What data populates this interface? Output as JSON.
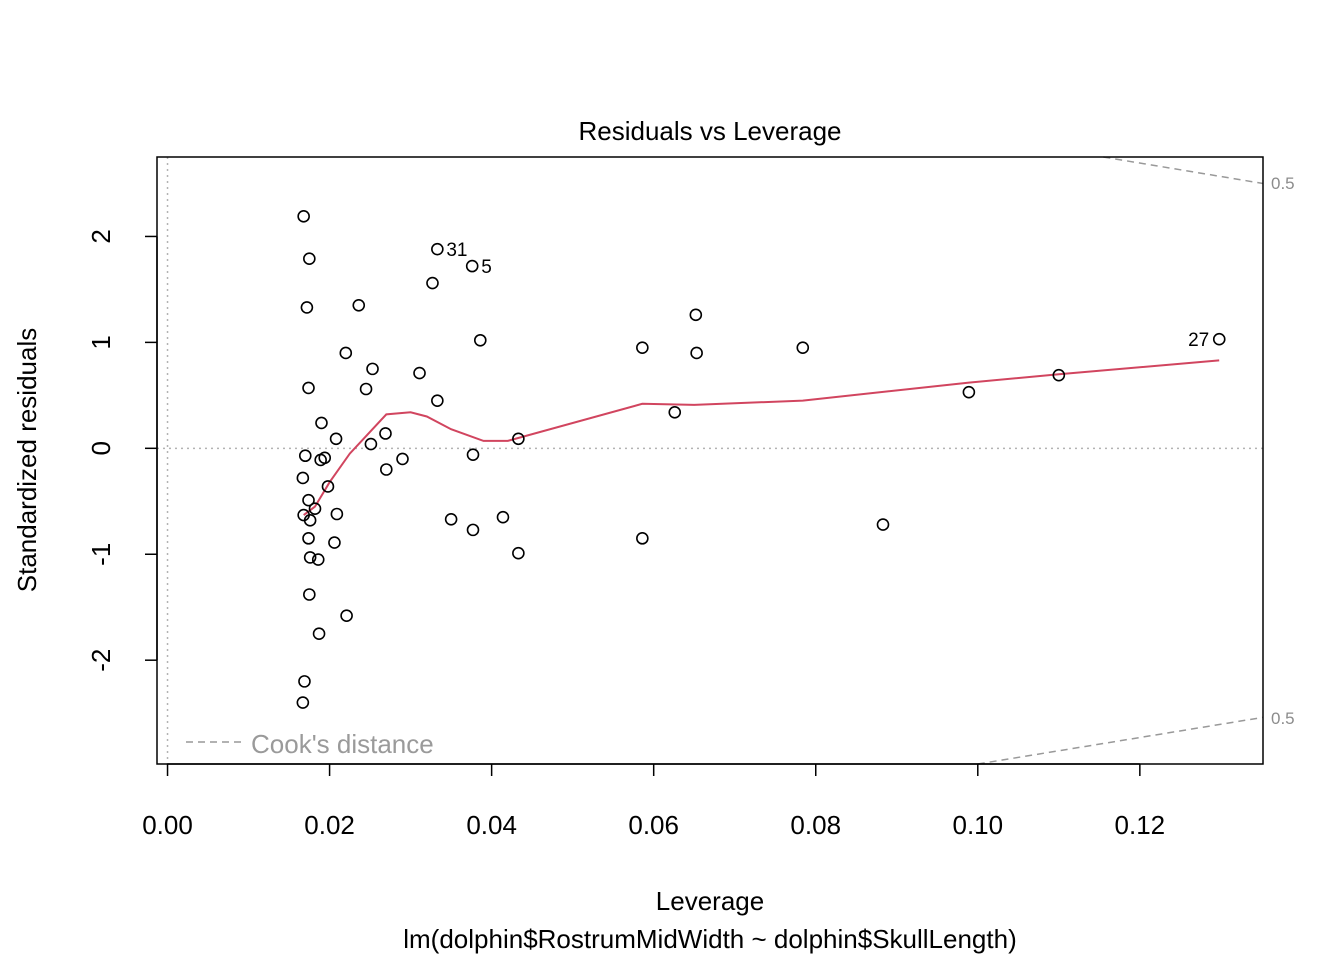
{
  "chart_data": {
    "type": "scatter",
    "title": "Residuals vs Leverage",
    "xlabel": "Leverage",
    "subtitle": "lm(dolphin$RostrumMidWidth ~ dolphin$SkullLength)",
    "ylabel": "Standardized residuals",
    "xlim": [
      -0.0013,
      0.1352
    ],
    "ylim": [
      -2.98,
      2.75
    ],
    "xticks": [
      0.0,
      0.02,
      0.04,
      0.06,
      0.08,
      0.1,
      0.12
    ],
    "xtick_labels": [
      "0.00",
      "0.02",
      "0.04",
      "0.06",
      "0.08",
      "0.10",
      "0.12"
    ],
    "yticks": [
      -2,
      -1,
      0,
      1,
      2
    ],
    "ytick_labels": [
      "-2",
      "-1",
      "0",
      "1",
      "2"
    ],
    "grid": false,
    "reference_lines": {
      "x": 0,
      "y": 0,
      "style": "dotted",
      "color": "#b3b3b3"
    },
    "points": [
      {
        "x": 0.0168,
        "y": 2.19
      },
      {
        "x": 0.0175,
        "y": 1.79
      },
      {
        "x": 0.0172,
        "y": 1.33
      },
      {
        "x": 0.0174,
        "y": 0.57
      },
      {
        "x": 0.017,
        "y": -0.07
      },
      {
        "x": 0.0167,
        "y": -0.28
      },
      {
        "x": 0.0174,
        "y": -0.49
      },
      {
        "x": 0.0168,
        "y": -0.63
      },
      {
        "x": 0.0174,
        "y": -0.85
      },
      {
        "x": 0.0176,
        "y": -1.03
      },
      {
        "x": 0.0175,
        "y": -1.38
      },
      {
        "x": 0.0169,
        "y": -2.2
      },
      {
        "x": 0.0167,
        "y": -2.4
      },
      {
        "x": 0.0176,
        "y": -0.68
      },
      {
        "x": 0.0182,
        "y": -0.57
      },
      {
        "x": 0.0186,
        "y": -1.05
      },
      {
        "x": 0.0187,
        "y": -1.75
      },
      {
        "x": 0.0189,
        "y": -0.11
      },
      {
        "x": 0.019,
        "y": 0.24
      },
      {
        "x": 0.0194,
        "y": -0.09
      },
      {
        "x": 0.0198,
        "y": -0.36
      },
      {
        "x": 0.0206,
        "y": -0.89
      },
      {
        "x": 0.0209,
        "y": -0.62
      },
      {
        "x": 0.0208,
        "y": 0.09
      },
      {
        "x": 0.022,
        "y": 0.9
      },
      {
        "x": 0.0221,
        "y": -1.58
      },
      {
        "x": 0.0236,
        "y": 1.35
      },
      {
        "x": 0.0245,
        "y": 0.56
      },
      {
        "x": 0.0251,
        "y": 0.04
      },
      {
        "x": 0.0253,
        "y": 0.75
      },
      {
        "x": 0.0269,
        "y": 0.14
      },
      {
        "x": 0.027,
        "y": -0.2
      },
      {
        "x": 0.029,
        "y": -0.1
      },
      {
        "x": 0.0311,
        "y": 0.71
      },
      {
        "x": 0.0327,
        "y": 1.56
      },
      {
        "x": 0.0333,
        "y": 0.45
      },
      {
        "x": 0.0333,
        "y": 1.88,
        "label": "31"
      },
      {
        "x": 0.035,
        "y": -0.67
      },
      {
        "x": 0.0376,
        "y": 1.72,
        "label": "5"
      },
      {
        "x": 0.0377,
        "y": -0.06
      },
      {
        "x": 0.0377,
        "y": -0.77
      },
      {
        "x": 0.0386,
        "y": 1.02
      },
      {
        "x": 0.0414,
        "y": -0.65
      },
      {
        "x": 0.0433,
        "y": 0.09
      },
      {
        "x": 0.0433,
        "y": -0.99
      },
      {
        "x": 0.0586,
        "y": 0.95
      },
      {
        "x": 0.0586,
        "y": -0.85
      },
      {
        "x": 0.0626,
        "y": 0.34
      },
      {
        "x": 0.0652,
        "y": 1.26
      },
      {
        "x": 0.0653,
        "y": 0.9
      },
      {
        "x": 0.0784,
        "y": 0.95
      },
      {
        "x": 0.0883,
        "y": -0.72
      },
      {
        "x": 0.0989,
        "y": 0.53
      },
      {
        "x": 0.11,
        "y": 0.69
      },
      {
        "x": 0.1298,
        "y": 1.03,
        "label": "27"
      }
    ],
    "smoother": {
      "color": "#d1455f",
      "x": [
        0.0168,
        0.0182,
        0.02,
        0.0225,
        0.027,
        0.03,
        0.032,
        0.035,
        0.039,
        0.042,
        0.0586,
        0.065,
        0.0784,
        0.0989,
        0.11,
        0.1298
      ],
      "y": [
        -0.63,
        -0.55,
        -0.32,
        -0.05,
        0.32,
        0.34,
        0.3,
        0.18,
        0.07,
        0.07,
        0.42,
        0.41,
        0.45,
        0.62,
        0.7,
        0.83
      ]
    },
    "cooks_distance": {
      "level": 0.5,
      "color": "#999999",
      "upper": {
        "x": [
          0.1155,
          0.1352
        ],
        "y": [
          2.75,
          2.5
        ]
      },
      "lower": {
        "x": [
          0.1,
          0.1352
        ],
        "y": [
          -2.98,
          -2.54
        ]
      },
      "upper_label": "0.5",
      "lower_label": "0.5"
    },
    "legend": {
      "position": "bottom-left",
      "entries": [
        {
          "label": "Cook's distance",
          "style": "dashed"
        }
      ]
    }
  }
}
